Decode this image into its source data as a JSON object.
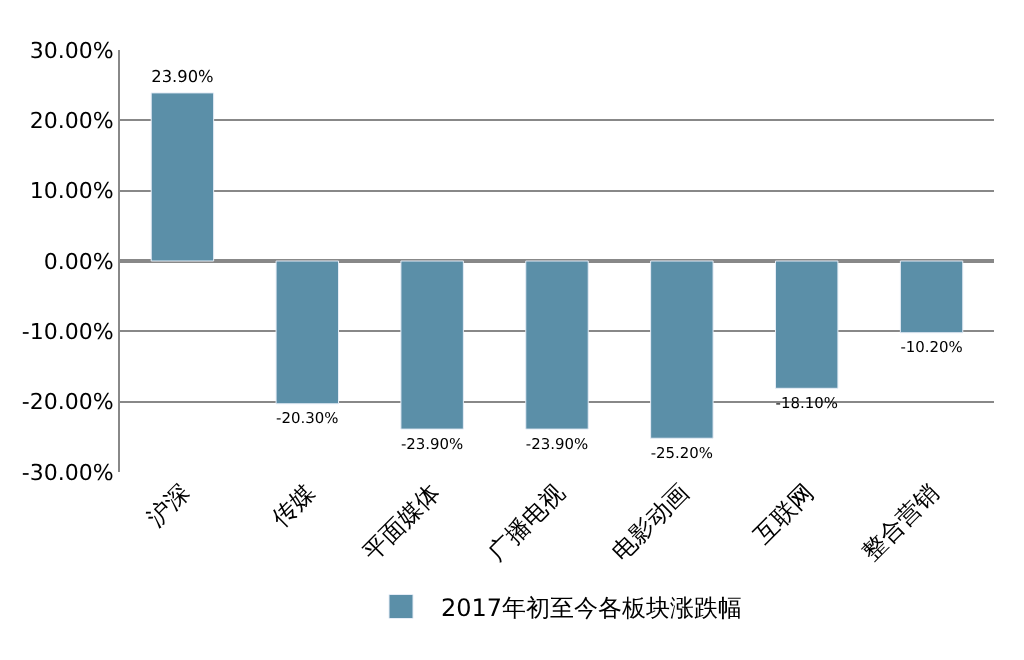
{
  "chart_data": {
    "type": "bar",
    "categories": [
      "沪深",
      "传媒",
      "平面媒体",
      "广播电视",
      "电影动画",
      "互联网",
      "整合营销"
    ],
    "series": [
      {
        "name": "2017年初至今各板块涨跌幅",
        "color": "#5b8fa8",
        "values": [
          23.9,
          -20.3,
          -23.9,
          -23.9,
          -25.2,
          -18.1,
          -10.2
        ],
        "value_labels": [
          "23.90%",
          "-20.30%",
          "-23.90%",
          "-23.90%",
          "-25.20%",
          "-18.10%",
          "-10.20%"
        ]
      }
    ],
    "ylim": [
      -30,
      30
    ],
    "yticks": [
      {
        "value": -30,
        "label": "-30.00%"
      },
      {
        "value": -20,
        "label": "-20.00%"
      },
      {
        "value": -10,
        "label": "-10.00%"
      },
      {
        "value": 0,
        "label": "0.00%"
      },
      {
        "value": 10,
        "label": "10.00%"
      },
      {
        "value": 20,
        "label": "20.00%"
      },
      {
        "value": 30,
        "label": "30.00%"
      }
    ],
    "grid": "y",
    "legend": "bottom"
  }
}
